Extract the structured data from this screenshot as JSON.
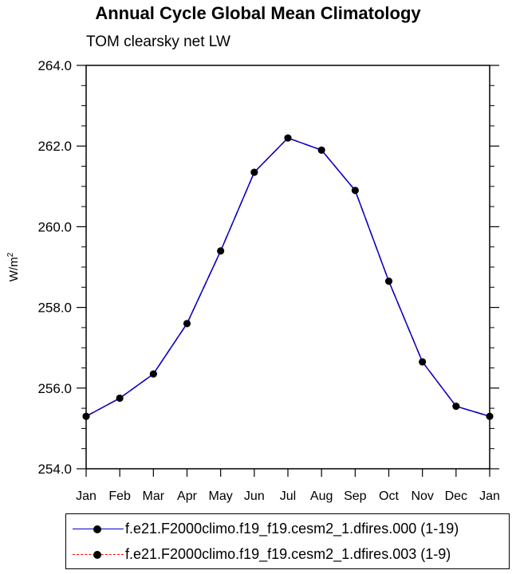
{
  "chart_data": {
    "type": "line",
    "title": "Annual Cycle Global Mean Climatology",
    "subtitle": "TOM clearsky net LW",
    "ylabel": "W/m",
    "ylabel_sup": "2",
    "categories": [
      "Jan",
      "Feb",
      "Mar",
      "Apr",
      "May",
      "Jun",
      "Jul",
      "Aug",
      "Sep",
      "Oct",
      "Nov",
      "Dec",
      "Jan"
    ],
    "ylim": [
      254.0,
      264.0
    ],
    "yticks": [
      "254.0",
      "256.0",
      "258.0",
      "260.0",
      "262.0",
      "264.0"
    ],
    "series": [
      {
        "name": "f.e21.F2000climo.f19_f19.cesm2_1.dfires.000 (1-19)",
        "color": "#0000cc",
        "dash": "solid",
        "marker": "filled-circle",
        "values": [
          255.3,
          255.75,
          256.35,
          257.6,
          259.4,
          261.35,
          262.2,
          261.9,
          260.9,
          258.65,
          256.65,
          255.55,
          255.3
        ]
      },
      {
        "name": "f.e21.F2000climo.f19_f19.cesm2_1.dfires.003 (1-9)",
        "color": "#ff0000",
        "dash": "dashed",
        "marker": "filled-circle",
        "values": [
          255.3,
          255.75,
          256.35,
          257.6,
          259.4,
          261.35,
          262.2,
          261.9,
          260.9,
          258.65,
          256.65,
          255.55,
          255.3
        ]
      }
    ],
    "grid": false,
    "legend_position": "bottom"
  }
}
